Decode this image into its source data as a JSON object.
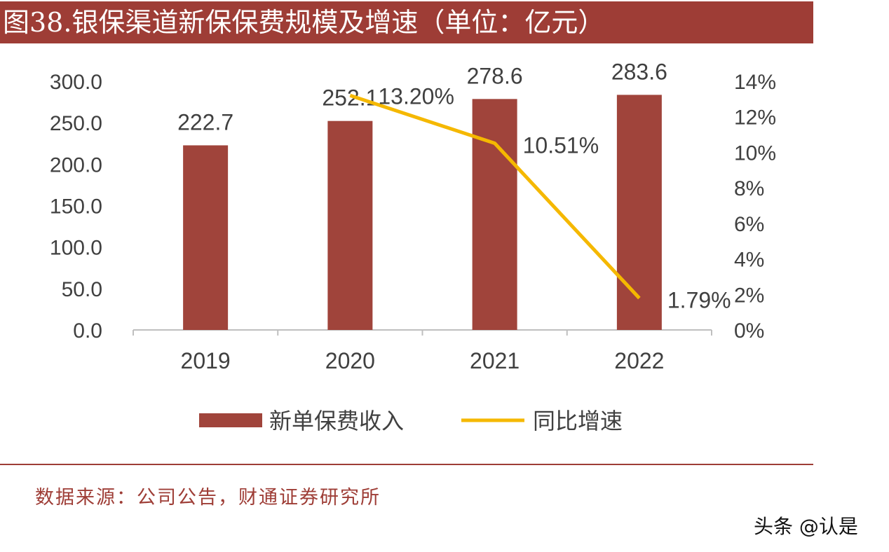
{
  "title": "图38.银保渠道新保保费规模及增速（单位：亿元）",
  "source": "数据来源：公司公告，财通证券研究所",
  "watermark": "头条 @认是",
  "colors": {
    "bar": "#a0443b",
    "line": "#f5b800",
    "title_bg": "#9e3d36"
  },
  "chart_data": {
    "type": "bar+line",
    "categories": [
      "2019",
      "2020",
      "2021",
      "2022"
    ],
    "series": [
      {
        "name": "新单保费收入",
        "type": "bar",
        "axis": "left",
        "values": [
          222.7,
          252.1,
          278.6,
          283.6
        ],
        "labels": [
          "222.7",
          "252.1",
          "278.6",
          "283.6"
        ]
      },
      {
        "name": "同比增速",
        "type": "line",
        "axis": "right",
        "values": [
          null,
          13.2,
          10.51,
          1.79
        ],
        "labels": [
          "",
          "13.20%",
          "10.51%",
          "1.79%"
        ]
      }
    ],
    "y_left": {
      "range": [
        0,
        300
      ],
      "ticks": [
        "0.0",
        "50.0",
        "100.0",
        "150.0",
        "200.0",
        "250.0",
        "300.0"
      ]
    },
    "y_right": {
      "range": [
        0,
        14
      ],
      "unit": "%",
      "ticks": [
        "0%",
        "2%",
        "4%",
        "6%",
        "8%",
        "10%",
        "12%",
        "14%"
      ]
    },
    "grid": false,
    "legend": "bottom"
  }
}
